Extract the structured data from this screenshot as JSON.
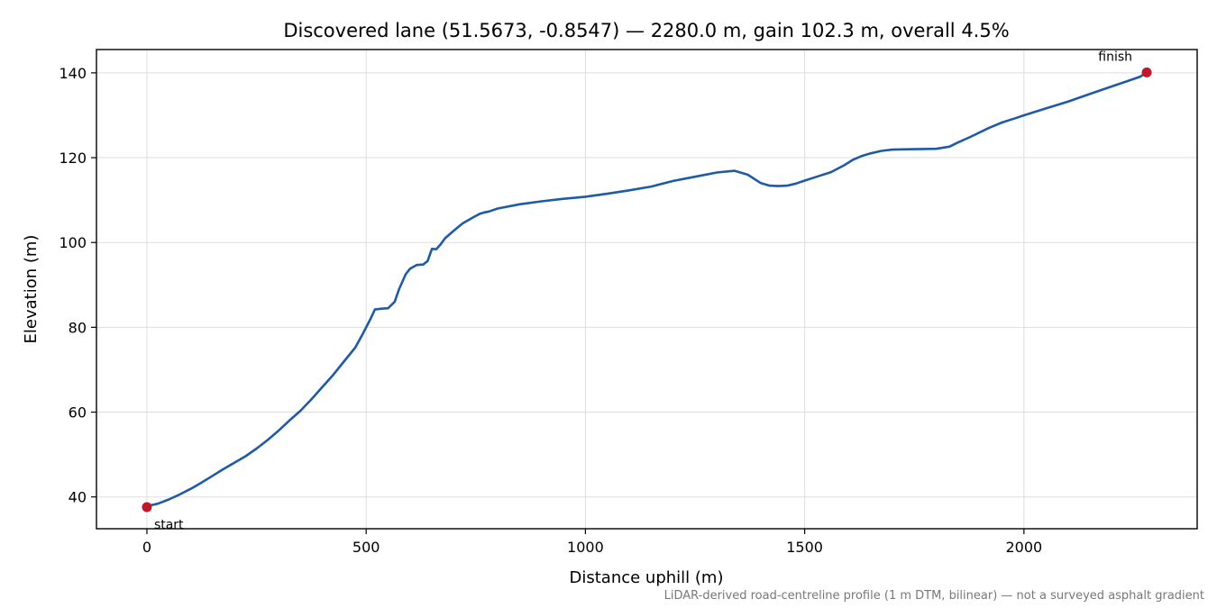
{
  "chart_data": {
    "type": "line",
    "title": "Discovered lane (51.5673, -0.8547) — 2280.0 m, gain 102.3 m, overall 4.5%",
    "xlabel": "Distance uphill (m)",
    "ylabel": "Elevation (m)",
    "xlim": [
      -115,
      2395
    ],
    "ylim": [
      32.5,
      145.5
    ],
    "xticks": [
      0,
      500,
      1000,
      1500,
      2000
    ],
    "yticks": [
      40,
      60,
      80,
      100,
      120,
      140
    ],
    "grid": true,
    "footnote": "LiDAR-derived road-centreline profile (1 m DTM, bilinear) — not a surveyed asphalt gradient",
    "line_color": "#1f5aa8",
    "marker_color": "#c0182b",
    "series": [
      {
        "x": [
          0,
          25,
          50,
          75,
          100,
          125,
          150,
          175,
          200,
          225,
          250,
          275,
          300,
          325,
          350,
          375,
          400,
          425,
          450,
          475,
          490,
          500,
          510,
          520,
          535,
          550,
          565,
          575,
          590,
          600,
          615,
          630,
          640,
          650,
          660,
          670,
          680,
          700,
          720,
          745,
          760,
          770,
          780,
          800,
          850,
          900,
          950,
          1000,
          1050,
          1100,
          1150,
          1200,
          1250,
          1300,
          1340,
          1370,
          1400,
          1420,
          1440,
          1460,
          1480,
          1500,
          1530,
          1560,
          1590,
          1610,
          1630,
          1650,
          1675,
          1700,
          1750,
          1800,
          1830,
          1850,
          1880,
          1920,
          1950,
          1980,
          2000,
          2050,
          2100,
          2150,
          2200,
          2240,
          2265,
          2280
        ],
        "y": [
          37.8,
          38.4,
          39.4,
          40.6,
          41.9,
          43.4,
          45.0,
          46.6,
          48.1,
          49.6,
          51.4,
          53.4,
          55.6,
          58.0,
          60.3,
          63.0,
          65.9,
          68.8,
          72.0,
          75.2,
          78.0,
          80.0,
          82.0,
          84.2,
          84.4,
          84.5,
          86.0,
          89.0,
          92.5,
          93.8,
          94.7,
          94.8,
          95.6,
          98.5,
          98.4,
          99.6,
          101.0,
          102.8,
          104.5,
          106.0,
          106.8,
          107.1,
          107.3,
          108.0,
          109.0,
          109.7,
          110.3,
          110.8,
          111.5,
          112.3,
          113.2,
          114.5,
          115.5,
          116.5,
          116.9,
          116.0,
          114.0,
          113.4,
          113.3,
          113.4,
          113.9,
          114.6,
          115.6,
          116.6,
          118.2,
          119.5,
          120.4,
          121.0,
          121.6,
          121.9,
          122.0,
          122.1,
          122.6,
          123.6,
          125.0,
          127.0,
          128.3,
          129.3,
          130.0,
          131.6,
          133.2,
          135.0,
          136.8,
          138.2,
          139.1,
          140.1
        ]
      }
    ],
    "annotations": [
      {
        "x": 0,
        "y": 37.6,
        "label": "start",
        "position": "below-right"
      },
      {
        "x": 2280,
        "y": 140.1,
        "label": "finish",
        "position": "above-left"
      }
    ]
  }
}
